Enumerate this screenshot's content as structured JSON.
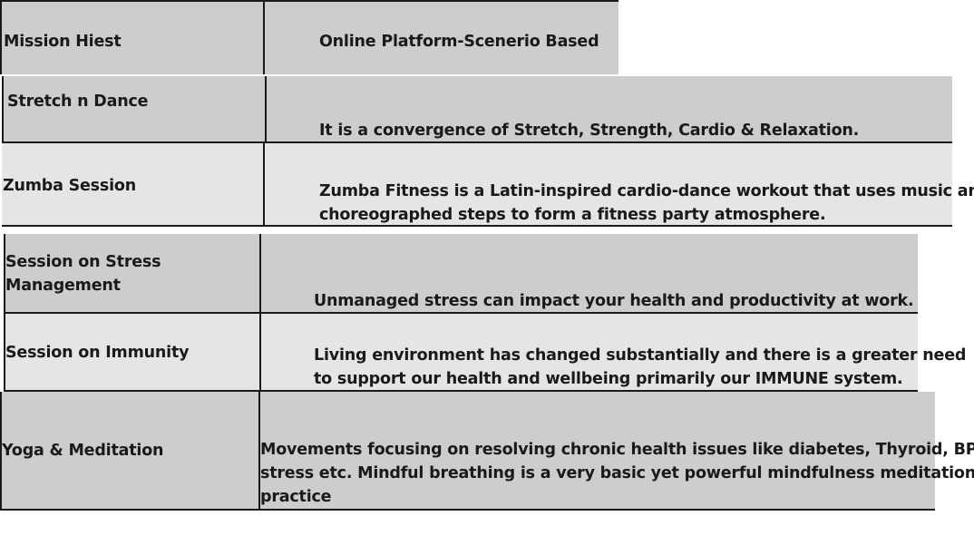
{
  "rows": [
    {
      "name": "Mission Hiest",
      "description": [
        "Online Platform-Scenerio Based"
      ]
    },
    {
      "name": "Stretch n Dance",
      "description": [
        "It is a convergence of Stretch, Strength, Cardio & Relaxation."
      ]
    },
    {
      "name": "Zumba Session",
      "description": [
        "Zumba Fitness is a Latin-inspired cardio-dance workout that uses music and",
        "choreographed steps to form a fitness party atmosphere."
      ]
    },
    {
      "name": [
        "Session on Stress",
        "Management"
      ],
      "description": [
        "Unmanaged stress can impact your health and productivity at work."
      ]
    },
    {
      "name": "Session on Immunity",
      "description": [
        "Living environment has changed substantially and there is a greater need",
        "to support our health and wellbeing primarily our IMMUNE system."
      ]
    },
    {
      "name": "Yoga & Meditation",
      "description": [
        "Movements focusing on resolving chronic health issues like diabetes, Thyroid, BP,",
        "stress etc. Mindful breathing is a very basic yet powerful mindfulness meditation",
        "practice"
      ]
    }
  ],
  "colors": {
    "row_dark": "#cdcdcd",
    "row_light": "#e5e5e5",
    "border": "#1a1a1a"
  }
}
